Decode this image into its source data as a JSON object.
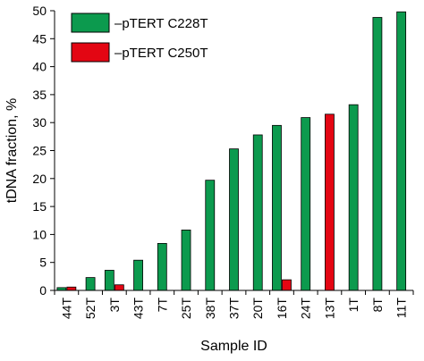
{
  "chart_data": {
    "type": "bar",
    "xlabel": "Sample ID",
    "ylabel": "tDNA fraction, %",
    "ylim": [
      0,
      50
    ],
    "yticks": [
      0,
      5,
      10,
      15,
      20,
      25,
      30,
      35,
      40,
      45,
      50
    ],
    "grid": false,
    "legend_position": "top-left",
    "categories": [
      "44T",
      "52T",
      "3T",
      "43T",
      "7T",
      "25T",
      "38T",
      "37T",
      "20T",
      "16T",
      "24T",
      "13T",
      "1T",
      "8T",
      "11T"
    ],
    "series": [
      {
        "name": "–pTERT C228T",
        "color": "#0c9a4e",
        "values": [
          0.5,
          2.3,
          3.6,
          5.4,
          8.4,
          10.8,
          19.7,
          25.3,
          27.8,
          29.5,
          30.9,
          null,
          33.2,
          48.8,
          49.8
        ]
      },
      {
        "name": "–pTERT C250T",
        "color": "#e30613",
        "values": [
          0.6,
          null,
          1.0,
          null,
          null,
          null,
          null,
          null,
          null,
          1.9,
          null,
          31.5,
          null,
          null,
          null
        ]
      }
    ]
  }
}
